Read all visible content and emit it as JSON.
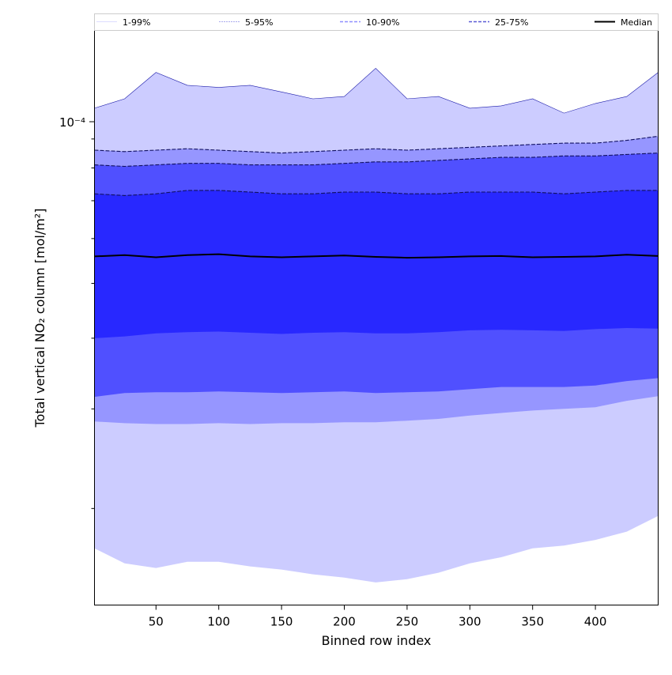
{
  "chart_data": {
    "type": "area",
    "title": "",
    "xlabel": "Binned row index",
    "ylabel": "Total vertical NO₂ column [mol/m²]",
    "xlim": [
      1,
      450
    ],
    "ylim": [
      1.35e-05,
      0.00014
    ],
    "yscale": "log",
    "xticks": [
      50,
      100,
      150,
      200,
      250,
      300,
      350,
      400
    ],
    "ytick_major_label": "10⁻⁴",
    "ytick_major_value": 0.0001,
    "grid": false,
    "legend_position": "top",
    "legend": [
      "1-99%",
      "5-95%",
      "10-90%",
      "25-75%",
      "Median"
    ],
    "x": [
      1,
      25,
      50,
      75,
      100,
      125,
      150,
      175,
      200,
      225,
      250,
      275,
      300,
      325,
      350,
      375,
      400,
      425,
      450
    ],
    "series": [
      {
        "name": "1-99%",
        "fill": "#ccccff",
        "lower": [
          1.7e-05,
          1.6e-05,
          1.57e-05,
          1.61e-05,
          1.61e-05,
          1.58e-05,
          1.56e-05,
          1.53e-05,
          1.51e-05,
          1.48e-05,
          1.5e-05,
          1.54e-05,
          1.6e-05,
          1.64e-05,
          1.7e-05,
          1.72e-05,
          1.76e-05,
          1.82e-05,
          1.94e-05
        ],
        "upper": [
          0.000102,
          0.000106,
          0.000118,
          0.000112,
          0.000111,
          0.000112,
          0.000109,
          0.000106,
          0.000107,
          0.00012,
          0.000106,
          0.000107,
          0.000102,
          0.000103,
          0.000106,
          0.0001,
          0.000104,
          0.000107,
          0.000118
        ]
      },
      {
        "name": "5-95%",
        "fill": "#9696ff",
        "lower": [
          2.85e-05,
          2.83e-05,
          2.82e-05,
          2.82e-05,
          2.83e-05,
          2.82e-05,
          2.83e-05,
          2.83e-05,
          2.84e-05,
          2.84e-05,
          2.86e-05,
          2.88e-05,
          2.92e-05,
          2.95e-05,
          2.98e-05,
          3e-05,
          3.02e-05,
          3.1e-05,
          3.16e-05
        ],
        "upper": [
          8.6e-05,
          8.55e-05,
          8.6e-05,
          8.65e-05,
          8.6e-05,
          8.55e-05,
          8.5e-05,
          8.55e-05,
          8.6e-05,
          8.65e-05,
          8.6e-05,
          8.65e-05,
          8.7e-05,
          8.75e-05,
          8.8e-05,
          8.85e-05,
          8.85e-05,
          8.95e-05,
          9.1e-05
        ]
      },
      {
        "name": "10-90%",
        "fill": "#5050ff",
        "lower": [
          3.15e-05,
          3.2e-05,
          3.21e-05,
          3.21e-05,
          3.22e-05,
          3.21e-05,
          3.2e-05,
          3.21e-05,
          3.22e-05,
          3.2e-05,
          3.21e-05,
          3.22e-05,
          3.25e-05,
          3.28e-05,
          3.28e-05,
          3.28e-05,
          3.3e-05,
          3.36e-05,
          3.4e-05
        ],
        "upper": [
          8.1e-05,
          8.05e-05,
          8.1e-05,
          8.15e-05,
          8.15e-05,
          8.1e-05,
          8.1e-05,
          8.1e-05,
          8.15e-05,
          8.2e-05,
          8.2e-05,
          8.25e-05,
          8.3e-05,
          8.35e-05,
          8.35e-05,
          8.4e-05,
          8.4e-05,
          8.45e-05,
          8.5e-05
        ]
      },
      {
        "name": "25-75%",
        "fill": "#2828ff",
        "lower": [
          4e-05,
          4.03e-05,
          4.08e-05,
          4.1e-05,
          4.11e-05,
          4.09e-05,
          4.07e-05,
          4.09e-05,
          4.1e-05,
          4.08e-05,
          4.08e-05,
          4.1e-05,
          4.13e-05,
          4.14e-05,
          4.13e-05,
          4.12e-05,
          4.15e-05,
          4.17e-05,
          4.16e-05
        ],
        "upper": [
          7.2e-05,
          7.15e-05,
          7.2e-05,
          7.3e-05,
          7.3e-05,
          7.25e-05,
          7.2e-05,
          7.2e-05,
          7.25e-05,
          7.25e-05,
          7.2e-05,
          7.2e-05,
          7.25e-05,
          7.25e-05,
          7.25e-05,
          7.2e-05,
          7.25e-05,
          7.3e-05,
          7.3e-05
        ]
      },
      {
        "name": "Median",
        "color": "#000000",
        "values": [
          5.58e-05,
          5.61e-05,
          5.56e-05,
          5.61e-05,
          5.63e-05,
          5.58e-05,
          5.56e-05,
          5.58e-05,
          5.6e-05,
          5.57e-05,
          5.55e-05,
          5.56e-05,
          5.58e-05,
          5.59e-05,
          5.56e-05,
          5.57e-05,
          5.58e-05,
          5.62e-05,
          5.59e-05
        ]
      }
    ]
  }
}
